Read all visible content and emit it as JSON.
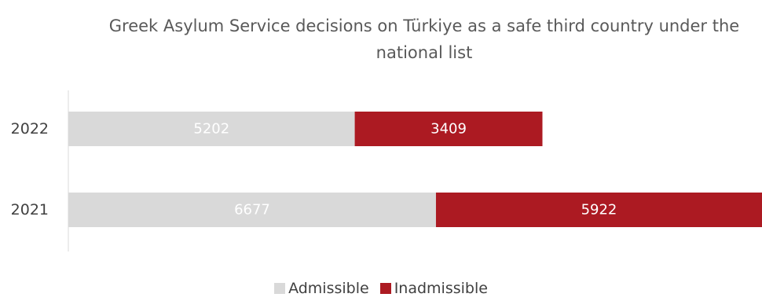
{
  "chart_data": {
    "type": "bar",
    "orientation": "horizontal",
    "stacked": true,
    "title": "Greek Asylum Service decisions on Türkiye as a safe third country under the national list",
    "categories": [
      "2022",
      "2021"
    ],
    "series": [
      {
        "name": "Admissible",
        "values": [
          5202,
          6677
        ],
        "color": "#d9d9d9",
        "label_color": "#ffffff"
      },
      {
        "name": "Inadmissible",
        "values": [
          3409,
          5922
        ],
        "color": "#ac1a22",
        "label_color": "#ffffff"
      }
    ],
    "xlim": [
      0,
      12599
    ],
    "grid": false,
    "legend": "bottom-center"
  }
}
